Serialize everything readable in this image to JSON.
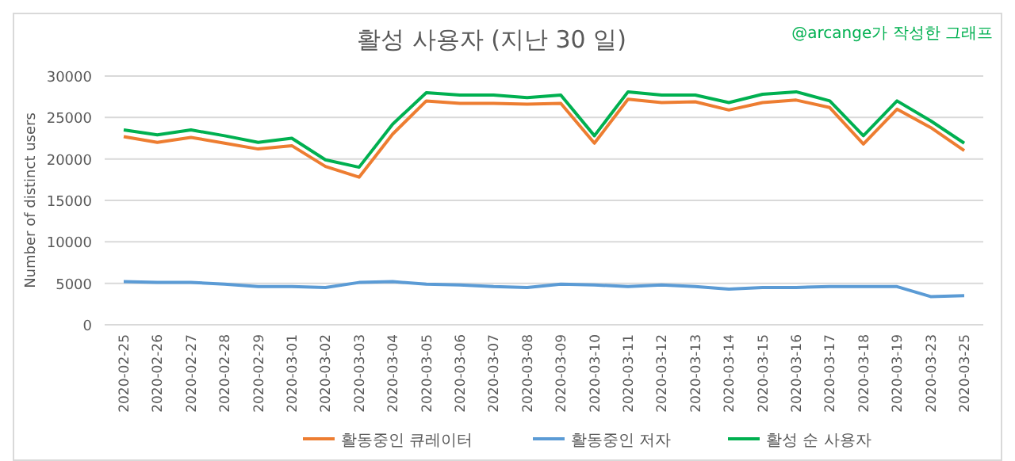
{
  "chart_data": {
    "type": "line",
    "title": "활성 사용자 (지난 30 일)",
    "ylabel": "Number of distinct users",
    "annotations": [
      "@arcange가 작성한 그래프"
    ],
    "categories": [
      "2020-02-25",
      "2020-02-26",
      "2020-02-27",
      "2020-02-28",
      "2020-02-29",
      "2020-03-01",
      "2020-03-02",
      "2020-03-03",
      "2020-03-04",
      "2020-03-05",
      "2020-03-06",
      "2020-03-07",
      "2020-03-08",
      "2020-03-09",
      "2020-03-10",
      "2020-03-11",
      "2020-03-12",
      "2020-03-13",
      "2020-03-14",
      "2020-03-15",
      "2020-03-16",
      "2020-03-17",
      "2020-03-18",
      "2020-03-19",
      "2020-03-23",
      "2020-03-25"
    ],
    "series": [
      {
        "name": "활동중인 큐레이터",
        "color": "#ed7d31",
        "values": [
          22700,
          22000,
          22600,
          21900,
          21200,
          21600,
          19100,
          17800,
          23000,
          27000,
          26700,
          26700,
          26600,
          26700,
          21900,
          27200,
          26800,
          26900,
          25900,
          26800,
          27100,
          26200,
          21800,
          26000,
          23800,
          21000
        ]
      },
      {
        "name": "활동중인 저자",
        "color": "#5b9bd5",
        "values": [
          5200,
          5100,
          5100,
          4900,
          4600,
          4600,
          4500,
          5100,
          5200,
          4900,
          4800,
          4600,
          4500,
          4900,
          4800,
          4600,
          4800,
          4600,
          4300,
          4500,
          4500,
          4600,
          4600,
          4600,
          3400,
          3500
        ]
      },
      {
        "name": "활성 순 사용자",
        "color": "#00b050",
        "values": [
          23500,
          22900,
          23500,
          22800,
          22000,
          22500,
          19900,
          19000,
          24200,
          28000,
          27700,
          27700,
          27400,
          27700,
          22800,
          28100,
          27700,
          27700,
          26800,
          27800,
          28100,
          27000,
          22800,
          27000,
          24600,
          21900
        ]
      }
    ],
    "ylim": [
      0,
      30000
    ],
    "yticks": [
      0,
      5000,
      10000,
      15000,
      20000,
      25000,
      30000
    ],
    "grid": "y",
    "legend": "bottom",
    "marker": "none",
    "line_style": "solid"
  }
}
